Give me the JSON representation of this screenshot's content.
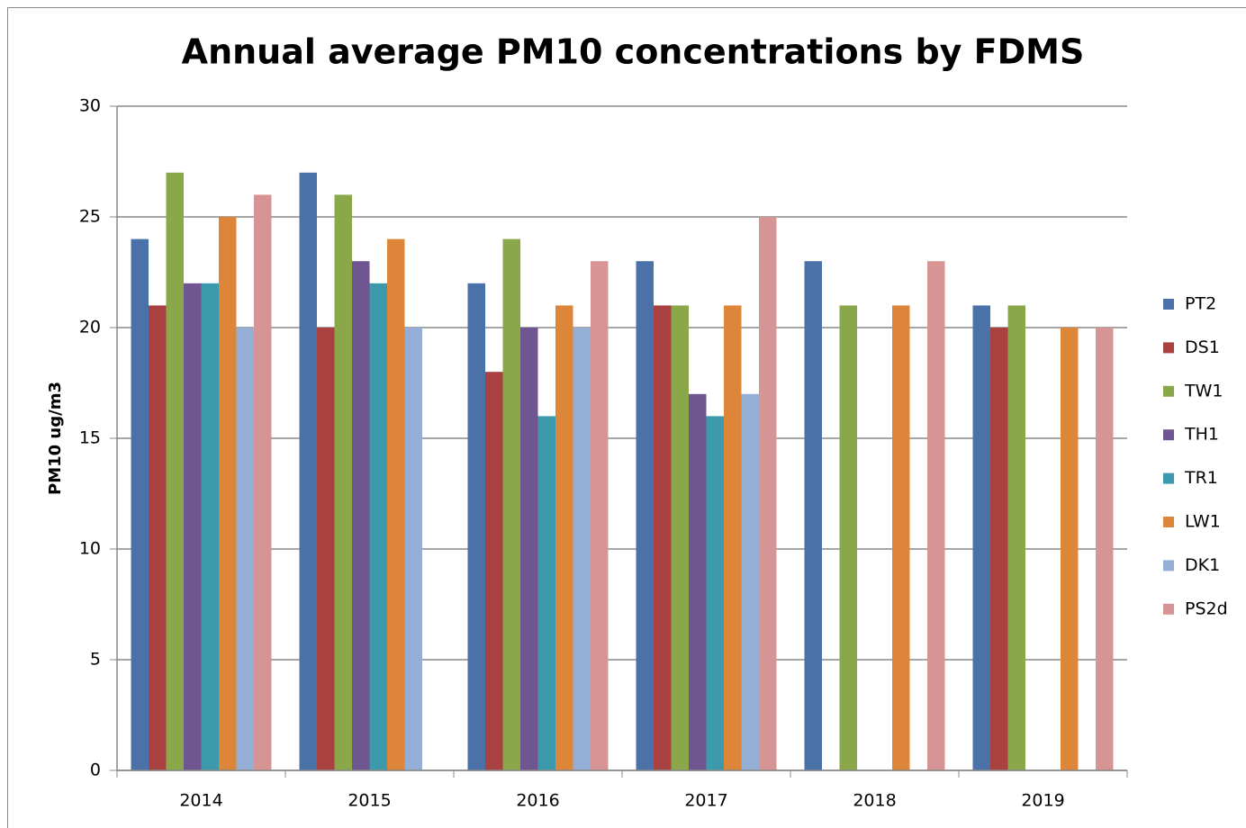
{
  "chart_data": {
    "type": "bar",
    "title": "Annual average PM10 concentrations by FDMS",
    "y_label": "PM10 ug/m3",
    "categories": [
      "2014",
      "2015",
      "2016",
      "2017",
      "2018",
      "2019"
    ],
    "series": [
      {
        "name": "PT2",
        "color": "#4a72a8",
        "values": [
          24,
          27,
          22,
          23,
          23,
          21
        ]
      },
      {
        "name": "DS1",
        "color": "#a8413f",
        "values": [
          21,
          20,
          18,
          21,
          null,
          20
        ]
      },
      {
        "name": "TW1",
        "color": "#8aa84a",
        "values": [
          27,
          26,
          24,
          21,
          21,
          21
        ]
      },
      {
        "name": "TH1",
        "color": "#6f5690",
        "values": [
          22,
          23,
          20,
          17,
          null,
          null
        ]
      },
      {
        "name": "TR1",
        "color": "#3d9aad",
        "values": [
          22,
          22,
          16,
          16,
          null,
          null
        ]
      },
      {
        "name": "LW1",
        "color": "#dd8539",
        "values": [
          25,
          24,
          21,
          21,
          21,
          20
        ]
      },
      {
        "name": "DK1",
        "color": "#95aed6",
        "values": [
          20,
          20,
          20,
          17,
          null,
          null
        ]
      },
      {
        "name": "PS2d",
        "color": "#d69594",
        "values": [
          26,
          null,
          23,
          25,
          23,
          20
        ]
      }
    ],
    "ylim": [
      0,
      30
    ],
    "yticks": [
      0,
      5,
      10,
      15,
      20,
      25,
      30
    ],
    "grid": true,
    "legend": "right"
  }
}
